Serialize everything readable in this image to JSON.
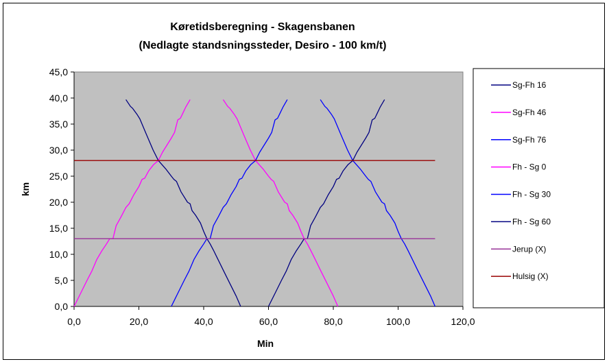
{
  "chart_data": {
    "type": "line",
    "title": "Køretidsberegning - Skagensbanen",
    "subtitle": "(Nedlagte standsningssteder, Desiro - 100 km/t)",
    "xlabel": "Min",
    "ylabel": "km",
    "xlim": [
      0,
      120
    ],
    "ylim": [
      0,
      45
    ],
    "x_ticks": [
      "0,0",
      "20,0",
      "40,0",
      "60,0",
      "80,0",
      "100,0",
      "120,0"
    ],
    "y_ticks": [
      "0,0",
      "5,0",
      "10,0",
      "15,0",
      "20,0",
      "25,0",
      "30,0",
      "35,0",
      "40,0",
      "45,0"
    ],
    "grid": "horizontal-off",
    "plot_background": "#c0c0c0",
    "legend_position": "right",
    "series": [
      {
        "name": "Sg-Fh 16",
        "color": "#000080",
        "points": [
          [
            16.0,
            39.7
          ],
          [
            17.4,
            38.4
          ],
          [
            18.1,
            38.0
          ],
          [
            19.5,
            36.8
          ],
          [
            20.3,
            36.0
          ],
          [
            22.2,
            33.2
          ],
          [
            24.4,
            30.0
          ],
          [
            26.0,
            28.0
          ],
          [
            28.3,
            26.4
          ],
          [
            30.0,
            25.0
          ],
          [
            30.8,
            24.4
          ],
          [
            31.6,
            24.0
          ],
          [
            33.0,
            22.0
          ],
          [
            35.0,
            20.0
          ],
          [
            35.8,
            19.7
          ],
          [
            36.4,
            18.4
          ],
          [
            37.5,
            17.5
          ],
          [
            39.0,
            16.0
          ],
          [
            40.0,
            14.4
          ],
          [
            41.0,
            13.0
          ],
          [
            42.0,
            12.0
          ],
          [
            43.0,
            10.8
          ],
          [
            44.2,
            9.3
          ],
          [
            46.0,
            7.0
          ],
          [
            48.0,
            4.5
          ],
          [
            50.0,
            2.0
          ],
          [
            51.4,
            0.0
          ]
        ]
      },
      {
        "name": "Sg-Fh 46",
        "color": "#ff00ff",
        "points": [
          [
            46.0,
            39.7
          ],
          [
            47.4,
            38.4
          ],
          [
            48.1,
            38.0
          ],
          [
            49.5,
            36.8
          ],
          [
            50.3,
            36.0
          ],
          [
            52.2,
            33.2
          ],
          [
            54.4,
            30.0
          ],
          [
            56.0,
            28.0
          ],
          [
            58.3,
            26.4
          ],
          [
            60.0,
            25.0
          ],
          [
            60.8,
            24.4
          ],
          [
            61.6,
            24.0
          ],
          [
            63.0,
            22.0
          ],
          [
            65.0,
            20.0
          ],
          [
            65.8,
            19.7
          ],
          [
            66.4,
            18.4
          ],
          [
            67.5,
            17.5
          ],
          [
            69.0,
            16.0
          ],
          [
            70.0,
            14.4
          ],
          [
            71.0,
            13.0
          ],
          [
            72.0,
            12.0
          ],
          [
            73.0,
            10.8
          ],
          [
            74.2,
            9.3
          ],
          [
            76.0,
            7.0
          ],
          [
            78.0,
            4.5
          ],
          [
            80.0,
            2.0
          ],
          [
            81.4,
            0.0
          ]
        ]
      },
      {
        "name": "Sg-Fh 76",
        "color": "#0000ff",
        "points": [
          [
            76.0,
            39.7
          ],
          [
            77.4,
            38.4
          ],
          [
            78.1,
            38.0
          ],
          [
            79.5,
            36.8
          ],
          [
            80.3,
            36.0
          ],
          [
            82.2,
            33.2
          ],
          [
            84.4,
            30.0
          ],
          [
            86.0,
            28.0
          ],
          [
            88.3,
            26.4
          ],
          [
            90.0,
            25.0
          ],
          [
            90.8,
            24.4
          ],
          [
            91.6,
            24.0
          ],
          [
            93.0,
            22.0
          ],
          [
            95.0,
            20.0
          ],
          [
            95.8,
            19.7
          ],
          [
            96.4,
            18.4
          ],
          [
            97.5,
            17.5
          ],
          [
            99.0,
            16.0
          ],
          [
            100.0,
            14.4
          ],
          [
            101.0,
            13.0
          ],
          [
            102.0,
            12.0
          ],
          [
            103.0,
            10.8
          ],
          [
            104.2,
            9.3
          ],
          [
            106.0,
            7.0
          ],
          [
            108.0,
            4.5
          ],
          [
            110.0,
            2.0
          ],
          [
            111.4,
            0.0
          ]
        ]
      },
      {
        "name": "Fh - Sg 0",
        "color": "#ff00ff",
        "points": [
          [
            0.0,
            0.0
          ],
          [
            2.0,
            2.5
          ],
          [
            4.0,
            5.0
          ],
          [
            5.5,
            6.8
          ],
          [
            7.0,
            9.0
          ],
          [
            8.5,
            10.6
          ],
          [
            10.0,
            12.0
          ],
          [
            11.0,
            13.0
          ],
          [
            12.0,
            13.0
          ],
          [
            13.0,
            15.5
          ],
          [
            14.5,
            17.2
          ],
          [
            16.0,
            19.0
          ],
          [
            17.0,
            19.7
          ],
          [
            18.5,
            21.5
          ],
          [
            20.0,
            23.0
          ],
          [
            21.0,
            24.4
          ],
          [
            21.8,
            24.6
          ],
          [
            23.0,
            26.0
          ],
          [
            24.5,
            27.2
          ],
          [
            26.0,
            28.0
          ],
          [
            27.3,
            29.6
          ],
          [
            28.5,
            30.8
          ],
          [
            30.0,
            32.3
          ],
          [
            31.0,
            33.4
          ],
          [
            32.0,
            35.8
          ],
          [
            32.8,
            36.1
          ],
          [
            33.5,
            37.0
          ],
          [
            34.5,
            38.3
          ],
          [
            35.8,
            39.7
          ]
        ]
      },
      {
        "name": "Fh - Sg 30",
        "color": "#0000ff",
        "points": [
          [
            30.0,
            0.0
          ],
          [
            32.0,
            2.5
          ],
          [
            34.0,
            5.0
          ],
          [
            35.5,
            6.8
          ],
          [
            37.0,
            9.0
          ],
          [
            38.5,
            10.6
          ],
          [
            40.0,
            12.0
          ],
          [
            41.0,
            13.0
          ],
          [
            42.0,
            13.0
          ],
          [
            43.0,
            15.5
          ],
          [
            44.5,
            17.2
          ],
          [
            46.0,
            19.0
          ],
          [
            47.0,
            19.7
          ],
          [
            48.5,
            21.5
          ],
          [
            50.0,
            23.0
          ],
          [
            51.0,
            24.4
          ],
          [
            51.8,
            24.6
          ],
          [
            53.0,
            26.0
          ],
          [
            54.5,
            27.2
          ],
          [
            56.0,
            28.0
          ],
          [
            57.3,
            29.6
          ],
          [
            58.5,
            30.8
          ],
          [
            60.0,
            32.3
          ],
          [
            61.0,
            33.4
          ],
          [
            62.0,
            35.8
          ],
          [
            62.8,
            36.1
          ],
          [
            63.5,
            37.0
          ],
          [
            64.5,
            38.3
          ],
          [
            65.8,
            39.7
          ]
        ]
      },
      {
        "name": "Fh - Sg 60",
        "color": "#000080",
        "points": [
          [
            60.0,
            0.0
          ],
          [
            62.0,
            2.5
          ],
          [
            64.0,
            5.0
          ],
          [
            65.5,
            6.8
          ],
          [
            67.0,
            9.0
          ],
          [
            68.5,
            10.6
          ],
          [
            70.0,
            12.0
          ],
          [
            71.0,
            13.0
          ],
          [
            72.0,
            13.0
          ],
          [
            73.0,
            15.5
          ],
          [
            74.5,
            17.2
          ],
          [
            76.0,
            19.0
          ],
          [
            77.0,
            19.7
          ],
          [
            78.5,
            21.5
          ],
          [
            80.0,
            23.0
          ],
          [
            81.0,
            24.4
          ],
          [
            81.8,
            24.6
          ],
          [
            83.0,
            26.0
          ],
          [
            84.5,
            27.2
          ],
          [
            86.0,
            28.0
          ],
          [
            87.3,
            29.6
          ],
          [
            88.5,
            30.8
          ],
          [
            90.0,
            32.3
          ],
          [
            91.0,
            33.4
          ],
          [
            92.0,
            35.8
          ],
          [
            92.8,
            36.1
          ],
          [
            93.5,
            37.0
          ],
          [
            94.5,
            38.3
          ],
          [
            95.8,
            39.7
          ]
        ]
      },
      {
        "name": "Jerup (X)",
        "color": "#993399",
        "points": [
          [
            0.0,
            13.0
          ],
          [
            111.4,
            13.0
          ]
        ]
      },
      {
        "name": "Hulsig (X)",
        "color": "#990000",
        "points": [
          [
            0.0,
            28.0
          ],
          [
            111.4,
            28.0
          ]
        ]
      }
    ]
  }
}
